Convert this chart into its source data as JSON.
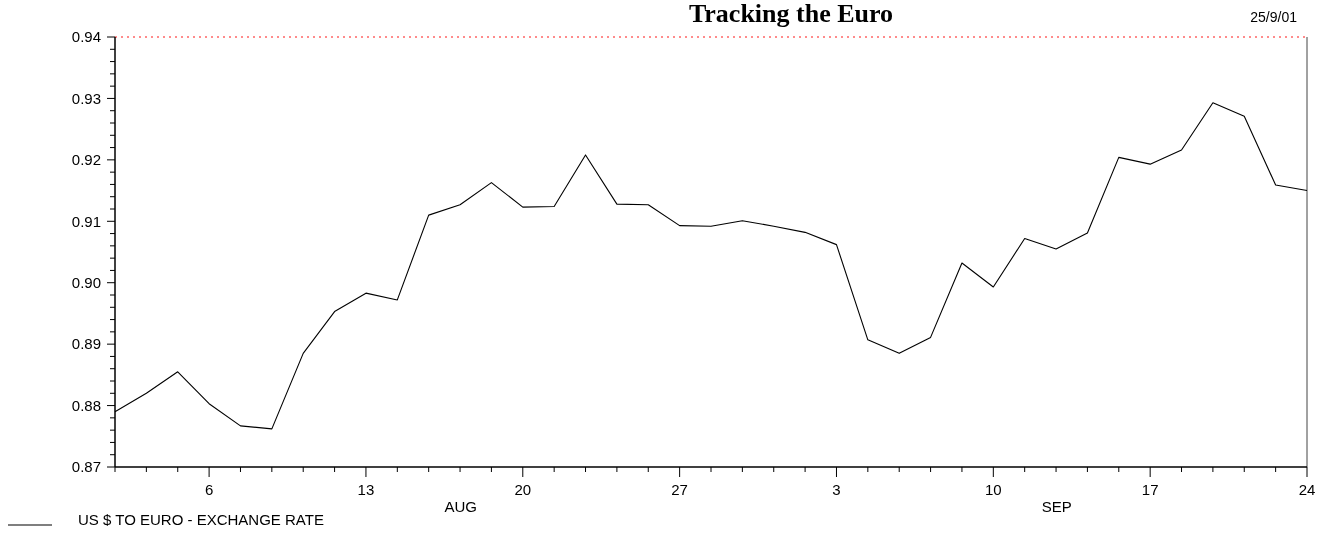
{
  "chart_data": {
    "type": "line",
    "title": "Tracking the Euro",
    "annotations": [
      "25/9/01",
      "AUG",
      "SEP"
    ],
    "categories": [
      null,
      null,
      null,
      "6",
      null,
      null,
      null,
      null,
      "13",
      null,
      null,
      null,
      null,
      "20",
      null,
      null,
      null,
      null,
      "27",
      null,
      null,
      null,
      null,
      "3",
      null,
      null,
      null,
      null,
      "10",
      null,
      null,
      null,
      null,
      "17",
      null,
      null,
      null,
      null,
      "24"
    ],
    "series": [
      {
        "name": "US $ TO EURO - EXCHANGE RATE",
        "color": "#000000",
        "values": [
          0.879,
          0.882,
          0.8855,
          0.8803,
          0.8767,
          0.8762,
          0.8885,
          0.8953,
          0.8983,
          0.8972,
          0.911,
          0.9127,
          0.9163,
          0.9123,
          0.9124,
          0.9208,
          0.9128,
          0.9127,
          0.9093,
          0.9092,
          0.9101,
          0.9092,
          0.9082,
          0.9062,
          0.8907,
          0.8885,
          0.8911,
          0.9032,
          0.8993,
          0.9072,
          0.9055,
          0.9081,
          0.9204,
          0.9193,
          0.9216,
          0.9293,
          0.9271,
          0.9159,
          0.915
        ]
      }
    ],
    "ylim": [
      0.87,
      0.94
    ],
    "yticks": [
      {
        "value": 0.87,
        "label": "0.87"
      },
      {
        "value": 0.872,
        "label": null
      },
      {
        "value": 0.874,
        "label": null
      },
      {
        "value": 0.876,
        "label": null
      },
      {
        "value": 0.878,
        "label": null
      },
      {
        "value": 0.88,
        "label": "0.88"
      },
      {
        "value": 0.882,
        "label": null
      },
      {
        "value": 0.884,
        "label": null
      },
      {
        "value": 0.886,
        "label": null
      },
      {
        "value": 0.888,
        "label": null
      },
      {
        "value": 0.89,
        "label": "0.89"
      },
      {
        "value": 0.892,
        "label": null
      },
      {
        "value": 0.894,
        "label": null
      },
      {
        "value": 0.896,
        "label": null
      },
      {
        "value": 0.898,
        "label": null
      },
      {
        "value": 0.9,
        "label": "0.90"
      },
      {
        "value": 0.902,
        "label": null
      },
      {
        "value": 0.904,
        "label": null
      },
      {
        "value": 0.906,
        "label": null
      },
      {
        "value": 0.908,
        "label": null
      },
      {
        "value": 0.91,
        "label": "0.91"
      },
      {
        "value": 0.912,
        "label": null
      },
      {
        "value": 0.914,
        "label": null
      },
      {
        "value": 0.916,
        "label": null
      },
      {
        "value": 0.918,
        "label": null
      },
      {
        "value": 0.92,
        "label": "0.92"
      },
      {
        "value": 0.922,
        "label": null
      },
      {
        "value": 0.924,
        "label": null
      },
      {
        "value": 0.926,
        "label": null
      },
      {
        "value": 0.928,
        "label": null
      },
      {
        "value": 0.93,
        "label": "0.93"
      },
      {
        "value": 0.932,
        "label": null
      },
      {
        "value": 0.934,
        "label": null
      },
      {
        "value": 0.936,
        "label": null
      },
      {
        "value": 0.938,
        "label": null
      },
      {
        "value": 0.94,
        "label": "0.94"
      }
    ],
    "ref_lines": [
      {
        "axis": "y",
        "value": 0.94,
        "color": "#ff6666",
        "line_style": "dotted"
      }
    ],
    "legend": "bottom left",
    "marker": "none",
    "line_style": "solid",
    "grid": false
  }
}
